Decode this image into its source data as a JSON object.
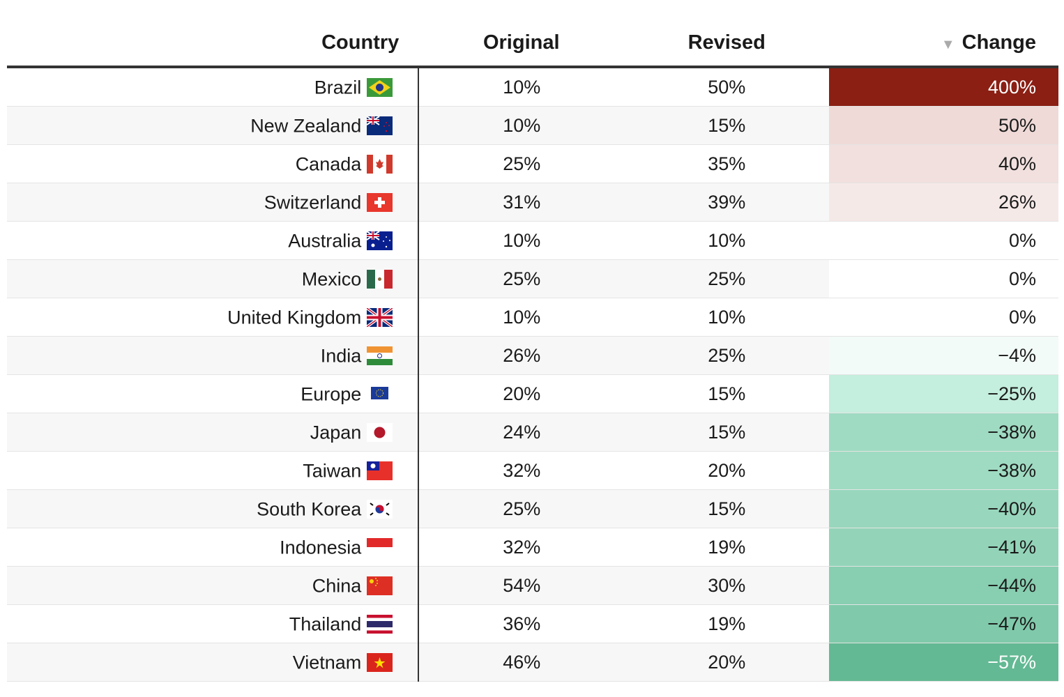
{
  "chart_data": {
    "type": "table",
    "columns": [
      "Country",
      "Original",
      "Revised",
      "Change"
    ],
    "sort": {
      "column": "Change",
      "direction": "descending",
      "icon": "sort-down-triangle"
    },
    "rows": [
      {
        "country": "Brazil",
        "flag": "br",
        "original": "10%",
        "revised": "50%",
        "change": "400%",
        "color": "#8b1f13",
        "text_color": "#ffffff"
      },
      {
        "country": "New Zealand",
        "flag": "nz",
        "original": "10%",
        "revised": "15%",
        "change": "50%",
        "color": "#efdad8"
      },
      {
        "country": "Canada",
        "flag": "ca",
        "original": "25%",
        "revised": "35%",
        "change": "40%",
        "color": "#f1e0de"
      },
      {
        "country": "Switzerland",
        "flag": "ch",
        "original": "31%",
        "revised": "39%",
        "change": "26%",
        "color": "#f5e9e7"
      },
      {
        "country": "Australia",
        "flag": "au",
        "original": "10%",
        "revised": "10%",
        "change": "0%",
        "color": "#ffffff"
      },
      {
        "country": "Mexico",
        "flag": "mx",
        "original": "25%",
        "revised": "25%",
        "change": "0%",
        "color": "#ffffff"
      },
      {
        "country": "United Kingdom",
        "flag": "gb",
        "original": "10%",
        "revised": "10%",
        "change": "0%",
        "color": "#ffffff"
      },
      {
        "country": "India",
        "flag": "in",
        "original": "26%",
        "revised": "25%",
        "change": "−4%",
        "color": "#f3fbf8"
      },
      {
        "country": "Europe",
        "flag": "eu",
        "original": "20%",
        "revised": "15%",
        "change": "−25%",
        "color": "#c4eedd"
      },
      {
        "country": "Japan",
        "flag": "jp",
        "original": "24%",
        "revised": "15%",
        "change": "−38%",
        "color": "#9fdbc2"
      },
      {
        "country": "Taiwan",
        "flag": "tw",
        "original": "32%",
        "revised": "20%",
        "change": "−38%",
        "color": "#9fdbc2"
      },
      {
        "country": "South Korea",
        "flag": "kr",
        "original": "25%",
        "revised": "15%",
        "change": "−40%",
        "color": "#98d7bd"
      },
      {
        "country": "Indonesia",
        "flag": "id",
        "original": "32%",
        "revised": "19%",
        "change": "−41%",
        "color": "#93d4b9"
      },
      {
        "country": "China",
        "flag": "cn",
        "original": "54%",
        "revised": "30%",
        "change": "−44%",
        "color": "#88ceb1"
      },
      {
        "country": "Thailand",
        "flag": "th",
        "original": "36%",
        "revised": "19%",
        "change": "−47%",
        "color": "#80caab"
      },
      {
        "country": "Vietnam",
        "flag": "vn",
        "original": "46%",
        "revised": "20%",
        "change": "−57%",
        "color": "#63b993",
        "text_color": "#ffffff"
      }
    ]
  }
}
